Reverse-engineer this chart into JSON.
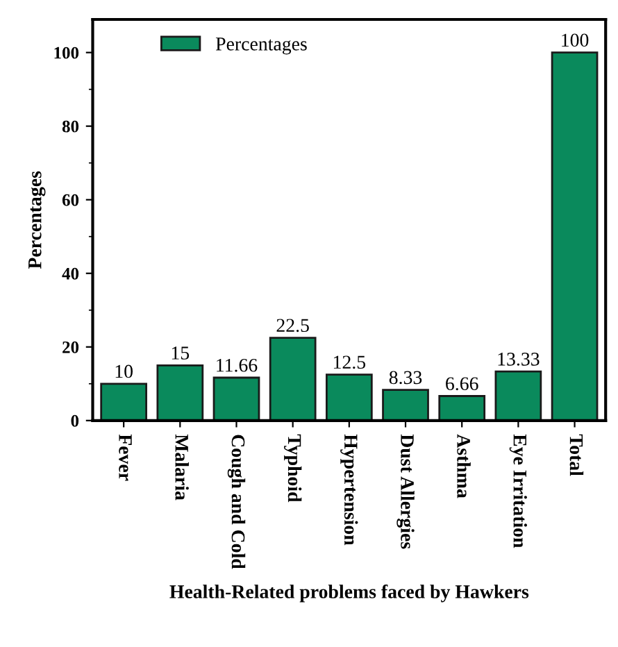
{
  "chart_data": {
    "type": "bar",
    "ylabel": "Percentages",
    "xlabel": "Health-Related problems faced by Hawkers",
    "categories": [
      "Fever",
      "Malaria",
      "Cough and Cold",
      "Typhoid",
      "Hypertension",
      "Dust Allergies",
      "Asthma",
      "Eye Irritation",
      "Total"
    ],
    "series": [
      {
        "name": "Percentages",
        "color": "#0a8a5c",
        "values": [
          10,
          15,
          11.66,
          22.5,
          12.5,
          8.33,
          6.66,
          13.33,
          100
        ]
      }
    ],
    "ylim": [
      0,
      109
    ],
    "yticks": [
      0,
      20,
      40,
      60,
      80,
      100
    ],
    "data_labels": true,
    "legend": "top left",
    "grid": false
  }
}
